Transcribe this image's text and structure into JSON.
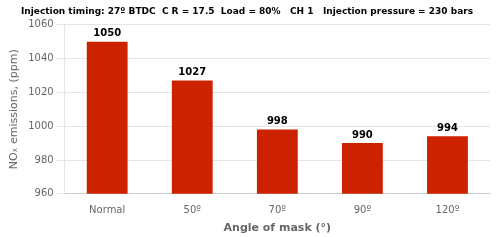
{
  "chart_data": {
    "type": "bar",
    "title": "Injection timing: 27º BTDC  C R = 17.5  Load = 80%   CH 1   Injection pressure = 230 bars",
    "categories": [
      "Normal",
      "50º",
      "70º",
      "90º",
      "120º"
    ],
    "values": [
      1050,
      1027,
      998,
      990,
      994
    ],
    "color": "#cc2200",
    "xlabel": "Angle of mask (°)",
    "ylabel": "NOₓ emissions, (ppm)",
    "ylim": [
      960,
      1060
    ],
    "yticks": [
      960,
      980,
      1000,
      1020,
      1040,
      1060
    ],
    "grid": true,
    "data_labels": true
  }
}
